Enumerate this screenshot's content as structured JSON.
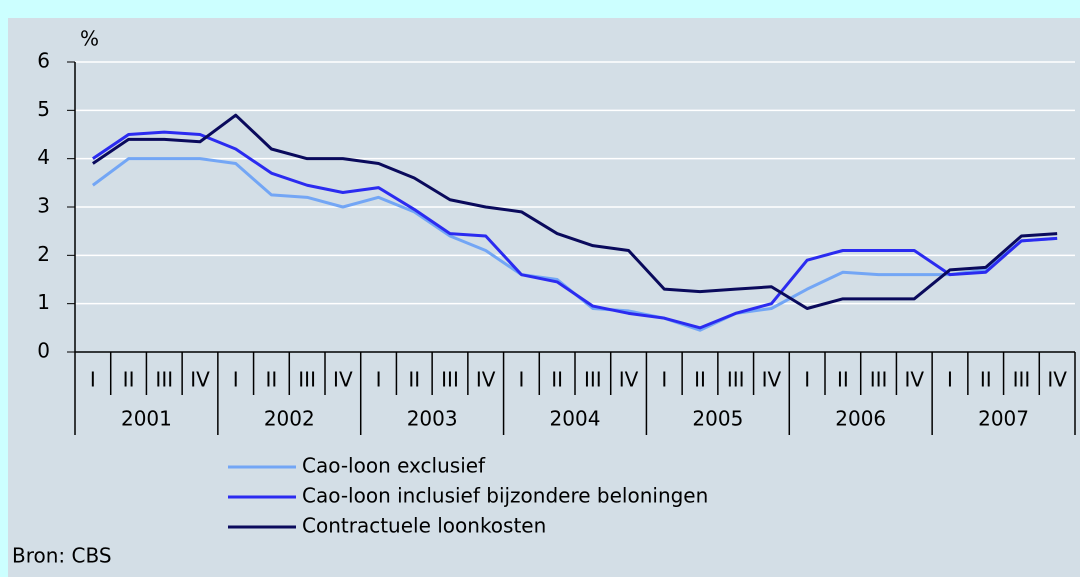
{
  "chart_data": {
    "type": "line",
    "y_unit": "%",
    "categories": [
      "I",
      "II",
      "III",
      "IV",
      "I",
      "II",
      "III",
      "IV",
      "I",
      "II",
      "III",
      "IV",
      "I",
      "II",
      "III",
      "IV",
      "I",
      "II",
      "III",
      "IV",
      "I",
      "II",
      "III",
      "IV",
      "I",
      "II",
      "III",
      "IV"
    ],
    "years": [
      "2001",
      "2002",
      "2003",
      "2004",
      "2005",
      "2006",
      "2007"
    ],
    "series": [
      {
        "name": "Cao-loon exclusief",
        "color": "#73a6f5",
        "values": [
          3.45,
          4.0,
          4.0,
          4.0,
          3.9,
          3.25,
          3.2,
          3.0,
          3.2,
          2.9,
          2.4,
          2.1,
          1.6,
          1.5,
          0.9,
          0.85,
          0.7,
          0.45,
          0.8,
          0.9,
          1.3,
          1.65,
          1.6,
          1.6,
          1.6,
          1.7,
          2.3,
          2.35
        ]
      },
      {
        "name": "Cao-loon inclusief bijzondere beloningen",
        "color": "#2b2bf0",
        "values": [
          4.0,
          4.5,
          4.55,
          4.5,
          4.2,
          3.7,
          3.45,
          3.3,
          3.4,
          2.95,
          2.45,
          2.4,
          1.6,
          1.45,
          0.95,
          0.8,
          0.7,
          0.5,
          0.8,
          1.0,
          1.9,
          2.1,
          2.1,
          2.1,
          1.6,
          1.65,
          2.3,
          2.35
        ]
      },
      {
        "name": "Contractuele loonkosten",
        "color": "#0a0a5c",
        "values": [
          3.9,
          4.4,
          4.4,
          4.35,
          4.9,
          4.2,
          4.0,
          4.0,
          3.9,
          3.6,
          3.15,
          3.0,
          2.9,
          2.45,
          2.2,
          2.1,
          1.3,
          1.25,
          1.3,
          1.35,
          0.9,
          1.1,
          1.1,
          1.1,
          1.7,
          1.75,
          2.4,
          2.45
        ]
      }
    ],
    "ylim": [
      0,
      6
    ],
    "yticks": [
      0,
      1,
      2,
      3,
      4,
      5,
      6
    ],
    "grid": true,
    "source": "Bron: CBS"
  }
}
